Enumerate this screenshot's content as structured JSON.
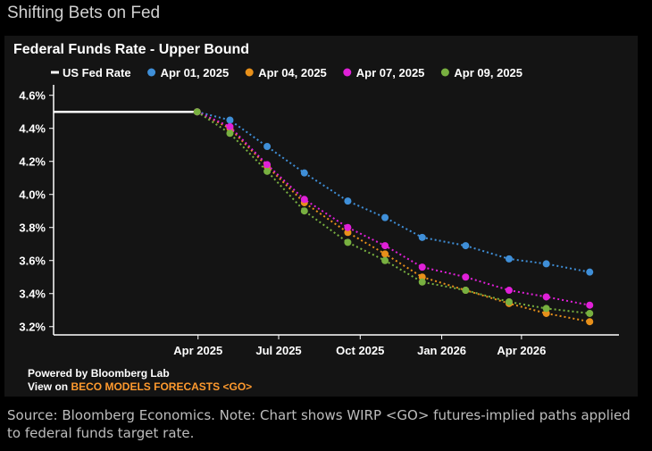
{
  "headline": "Shifting Bets on Fed",
  "footer": {
    "powered_by": "Powered by Bloomberg Lab",
    "view_on_prefix": "View on ",
    "view_on_link": "BECO MODELS FORECASTS <GO>"
  },
  "source_note": "Source: Bloomberg Economics. Note: Chart shows WIRP <GO> futures-implied paths applied to federal funds target rate.",
  "colors": {
    "background": "#141414",
    "us_fed_rate": "#ffffff",
    "apr01": "#3f8fd8",
    "apr04": "#e8901a",
    "apr07": "#e020d8",
    "apr09": "#78b040",
    "link": "#ff9a2e",
    "axis": "#ffffff"
  },
  "chart_data": {
    "type": "line",
    "title": "Federal Funds Rate - Upper Bound",
    "xlabel": "",
    "ylabel": "",
    "x_ticks": [
      "Apr 2025",
      "Jul 2025",
      "Oct 2025",
      "Jan 2026",
      "Apr 2026"
    ],
    "y_ticks": [
      "3.2%",
      "3.4%",
      "3.6%",
      "3.8%",
      "4.0%",
      "4.2%",
      "4.4%",
      "4.6%"
    ],
    "ylim": [
      3.15,
      4.62
    ],
    "xlim": [
      "2024-10-20",
      "2026-07-20"
    ],
    "grid": false,
    "legend_position": "top",
    "series": [
      {
        "name": "US Fed Rate",
        "style": "solid",
        "x": [
          "2024-10-20",
          "2025-03-31"
        ],
        "y": [
          4.5,
          4.5
        ]
      },
      {
        "name": "Apr 01, 2025",
        "style": "dotted-markers",
        "x": [
          "2025-03-31",
          "2025-05-07",
          "2025-06-18",
          "2025-07-30",
          "2025-09-17",
          "2025-10-29",
          "2025-12-10",
          "2026-01-28",
          "2026-03-18",
          "2026-04-29",
          "2026-06-17"
        ],
        "y": [
          4.5,
          4.45,
          4.29,
          4.13,
          3.96,
          3.86,
          3.74,
          3.69,
          3.61,
          3.58,
          3.53
        ]
      },
      {
        "name": "Apr 04, 2025",
        "style": "dotted-markers",
        "x": [
          "2025-03-31",
          "2025-05-07",
          "2025-06-18",
          "2025-07-30",
          "2025-09-17",
          "2025-10-29",
          "2025-12-10",
          "2026-01-28",
          "2026-03-18",
          "2026-04-29",
          "2026-06-17"
        ],
        "y": [
          4.5,
          4.4,
          4.17,
          3.95,
          3.77,
          3.64,
          3.5,
          3.42,
          3.34,
          3.28,
          3.23
        ]
      },
      {
        "name": "Apr 07, 2025",
        "style": "dotted-markers",
        "x": [
          "2025-03-31",
          "2025-05-07",
          "2025-06-18",
          "2025-07-30",
          "2025-09-17",
          "2025-10-29",
          "2025-12-10",
          "2026-01-28",
          "2026-03-18",
          "2026-04-29",
          "2026-06-17"
        ],
        "y": [
          4.5,
          4.41,
          4.18,
          3.97,
          3.8,
          3.69,
          3.56,
          3.5,
          3.42,
          3.38,
          3.33
        ]
      },
      {
        "name": "Apr 09, 2025",
        "style": "dotted-markers",
        "x": [
          "2025-03-31",
          "2025-05-07",
          "2025-06-18",
          "2025-07-30",
          "2025-09-17",
          "2025-10-29",
          "2025-12-10",
          "2026-01-28",
          "2026-03-18",
          "2026-04-29",
          "2026-06-17"
        ],
        "y": [
          4.5,
          4.37,
          4.14,
          3.9,
          3.71,
          3.6,
          3.47,
          3.42,
          3.35,
          3.31,
          3.28
        ]
      }
    ]
  }
}
